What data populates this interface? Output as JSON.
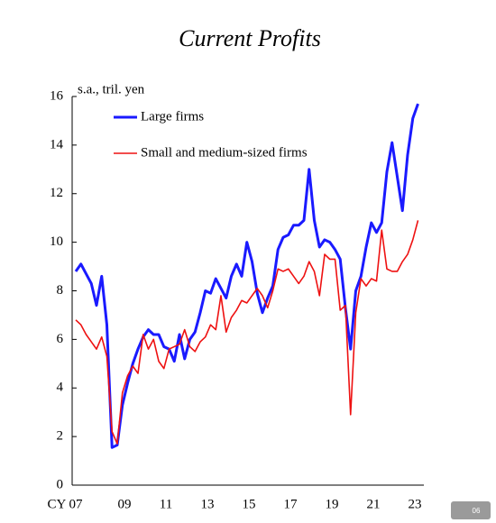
{
  "chart_data": {
    "type": "line",
    "title": "Current Profits",
    "y_label": "s.a., tril. yen",
    "categories": [
      "CY 07",
      null,
      null,
      null,
      null,
      null,
      null,
      null,
      "09",
      null,
      null,
      null,
      null,
      null,
      null,
      null,
      "11",
      null,
      null,
      null,
      null,
      null,
      null,
      null,
      "13",
      null,
      null,
      null,
      null,
      null,
      null,
      null,
      "15",
      null,
      null,
      null,
      null,
      null,
      null,
      null,
      "17",
      null,
      null,
      null,
      null,
      null,
      null,
      null,
      "19",
      null,
      null,
      null,
      null,
      null,
      null,
      null,
      "21",
      null,
      null,
      null,
      null,
      null,
      null,
      null,
      "23",
      null,
      null
    ],
    "series": [
      {
        "name": "Large firms",
        "color": "#1a1aff",
        "values": [
          8.8,
          9.1,
          8.7,
          8.3,
          7.4,
          8.6,
          6.6,
          1.55,
          1.65,
          3.3,
          4.2,
          5.0,
          5.6,
          6.1,
          6.4,
          6.2,
          6.2,
          5.7,
          5.6,
          5.1,
          6.2,
          5.2,
          6.0,
          6.3,
          7.1,
          8.0,
          7.9,
          8.5,
          8.1,
          7.7,
          8.6,
          9.1,
          8.6,
          10.0,
          9.2,
          7.9,
          7.1,
          7.7,
          8.2,
          9.7,
          10.2,
          10.3,
          10.7,
          10.7,
          10.9,
          13.0,
          10.9,
          9.8,
          10.1,
          10.0,
          9.7,
          9.3,
          7.3,
          5.6,
          8.0,
          8.6,
          9.8,
          10.8,
          10.4,
          10.8,
          12.9,
          14.1,
          12.7,
          11.3,
          13.6,
          15.1,
          15.7
        ]
      },
      {
        "name": "Small and medium-sized firms",
        "color": "#ee1111",
        "values": [
          6.8,
          6.6,
          6.2,
          5.9,
          5.6,
          6.1,
          5.3,
          2.2,
          1.7,
          3.8,
          4.5,
          4.9,
          4.6,
          6.2,
          5.6,
          6.0,
          5.1,
          4.8,
          5.6,
          5.7,
          5.8,
          6.4,
          5.7,
          5.5,
          5.9,
          6.1,
          6.6,
          6.4,
          7.8,
          6.3,
          6.9,
          7.2,
          7.6,
          7.5,
          7.8,
          8.1,
          7.8,
          7.3,
          8.0,
          8.9,
          8.8,
          8.9,
          8.6,
          8.3,
          8.6,
          9.2,
          8.8,
          7.8,
          9.5,
          9.3,
          9.3,
          7.2,
          7.4,
          2.9,
          7.1,
          8.5,
          8.2,
          8.5,
          8.4,
          10.5,
          8.9,
          8.8,
          8.8,
          9.2,
          9.5,
          10.1,
          10.9
        ]
      }
    ],
    "ylim": [
      0,
      16
    ],
    "yticks": [
      0,
      2,
      4,
      6,
      8,
      10,
      12,
      14,
      16
    ]
  },
  "badge": "06"
}
